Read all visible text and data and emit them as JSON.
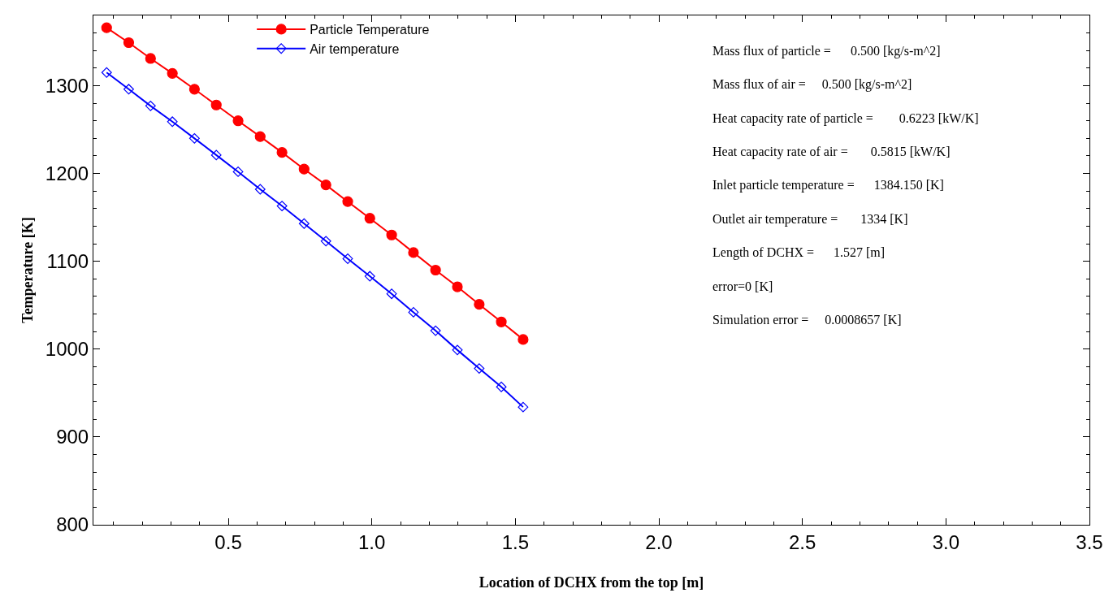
{
  "chart_data": {
    "type": "line",
    "xlabel": "Location of DCHX from the top [m]",
    "ylabel": "Temperature [K]",
    "x": [
      0.076,
      0.153,
      0.229,
      0.305,
      0.382,
      0.458,
      0.534,
      0.611,
      0.687,
      0.764,
      0.84,
      0.916,
      0.993,
      1.069,
      1.145,
      1.222,
      1.298,
      1.374,
      1.451,
      1.527
    ],
    "series": [
      {
        "name": "Particle Temperature",
        "color": "#ff0000",
        "marker": "circle",
        "values": [
          1366,
          1349,
          1331,
          1314,
          1296,
          1278,
          1260,
          1242,
          1224,
          1205,
          1187,
          1168,
          1149,
          1130,
          1110,
          1090,
          1071,
          1051,
          1031,
          1011
        ]
      },
      {
        "name": "Air temperature",
        "color": "#0000ff",
        "marker": "diamond",
        "values": [
          1315,
          1296,
          1277,
          1259,
          1240,
          1221,
          1202,
          1182,
          1163,
          1143,
          1123,
          1103,
          1083,
          1063,
          1042,
          1021,
          999,
          978,
          957,
          934
        ]
      }
    ],
    "xlim": [
      0.03,
      3.5
    ],
    "xticks": [
      0.5,
      {
        "value": 1.0,
        "label": "1.0"
      },
      1.5,
      {
        "value": 2.0,
        "label": "2.0"
      },
      2.5,
      {
        "value": 3.0,
        "label": "3.0"
      },
      3.5
    ],
    "ylim": [
      800,
      1380
    ],
    "yticks": [
      800,
      900,
      1000,
      1100,
      1200,
      1300
    ],
    "legend": "top left",
    "line_style": "solid",
    "annotations": [
      "Mass flux of particle =      0.500 [kg/s-m^2]",
      "Mass flux of air =     0.500 [kg/s-m^2]",
      "Heat capacity rate of particle =        0.6223 [kW/K]",
      "Heat capacity rate of air =       0.5815 [kW/K]",
      "Inlet particle temperature =      1384.150 [K]",
      "Outlet air temperature =       1334 [K]",
      "Length of DCHX =      1.527 [m]",
      "error=0 [K]",
      "Simulation error =     0.0008657 [K]"
    ]
  }
}
